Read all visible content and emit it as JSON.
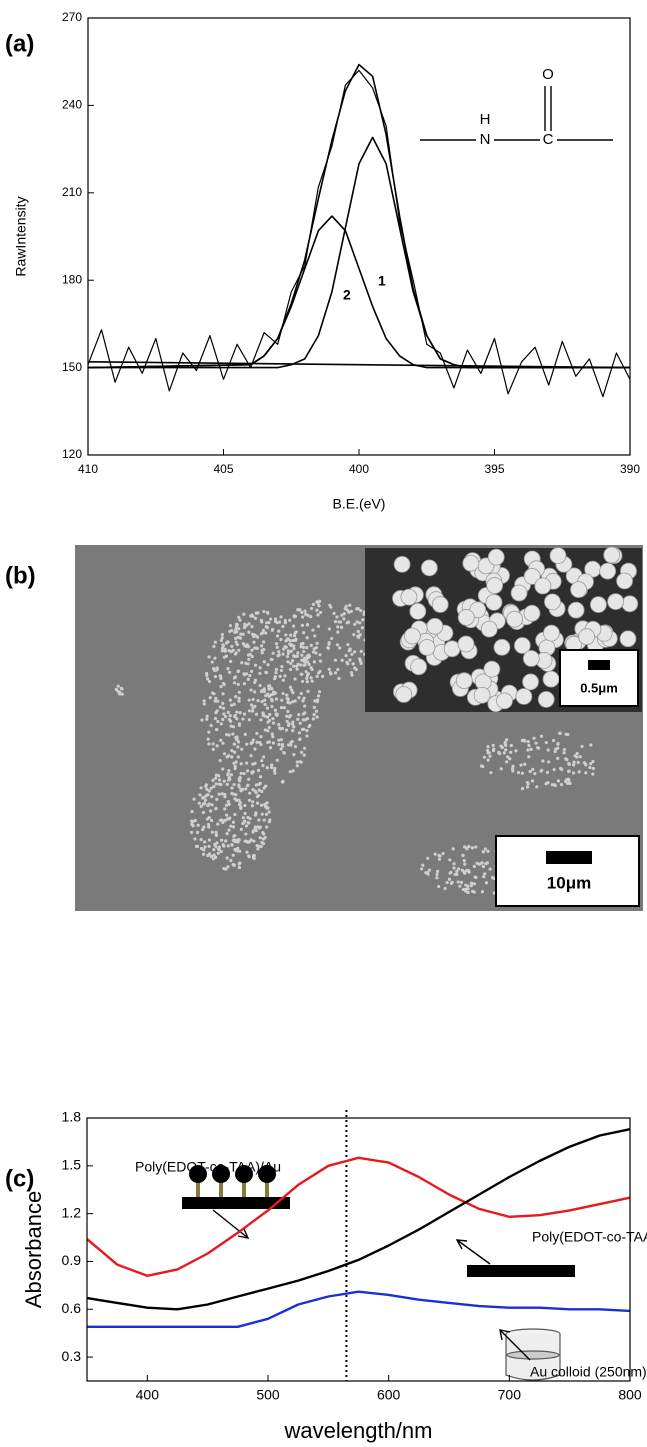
{
  "chart_data": [
    {
      "type": "line",
      "panel_label": "(a)",
      "xlabel": "B.E.(eV)",
      "ylabel": "RawIntensity",
      "xlim": [
        410,
        390
      ],
      "xticks": [
        410,
        405,
        400,
        395,
        390
      ],
      "ylim": [
        120,
        270
      ],
      "yticks": [
        120,
        150,
        180,
        210,
        240,
        270
      ],
      "structure_atoms": [
        "H",
        "N",
        "C",
        "O"
      ],
      "series": [
        {
          "color": "#000000",
          "x": [
            410,
            409.5,
            409,
            408.5,
            408,
            407.5,
            407,
            406.5,
            406,
            405.5,
            405,
            404.5,
            404,
            403.5,
            403,
            402.5,
            402,
            401.5,
            401,
            400.5,
            400,
            399.5,
            399,
            398.5,
            398,
            397.5,
            397,
            396.5,
            396,
            395.5,
            395,
            394.5,
            394,
            393.5,
            393,
            392.5,
            392,
            391.5,
            391,
            390.5,
            390
          ],
          "values": [
            151,
            163,
            145,
            157,
            148,
            160,
            142,
            155,
            149,
            161,
            146,
            158,
            150,
            162,
            158,
            176,
            185,
            212,
            226,
            247,
            252,
            246,
            233,
            200,
            180,
            158,
            155,
            143,
            156,
            148,
            160,
            141,
            152,
            157,
            144,
            159,
            147,
            153,
            140,
            155,
            146
          ]
        },
        {
          "color": "#000000",
          "x": [
            410,
            404,
            403.5,
            403,
            402.5,
            402,
            401.5,
            401,
            400.5,
            400,
            399.5,
            399,
            398.5,
            398,
            397.5,
            397,
            396.5,
            396,
            390
          ],
          "values": [
            150,
            151,
            154,
            160,
            172,
            187,
            208,
            228,
            245,
            254,
            250,
            230,
            202,
            177,
            161,
            153,
            151,
            150,
            150
          ]
        },
        {
          "name": "1",
          "color": "#000000",
          "x": [
            410,
            404,
            403.5,
            403,
            402.5,
            402,
            401.5,
            401,
            400.5,
            400,
            399.5,
            399,
            398.5,
            398,
            397.5,
            397,
            396.5,
            396,
            390
          ],
          "values": [
            150,
            150,
            150,
            150,
            151,
            153,
            161,
            176,
            198,
            220,
            229,
            220,
            198,
            176,
            161,
            153,
            151,
            150,
            150
          ]
        },
        {
          "name": "2",
          "color": "#000000",
          "x": [
            410,
            404,
            403.5,
            403,
            402.5,
            402,
            401.5,
            401,
            400.5,
            400,
            399.5,
            399,
            398.5,
            398,
            397.5,
            397,
            396.5,
            396,
            390
          ],
          "values": [
            150,
            151,
            154,
            160,
            171,
            184,
            197,
            202,
            197,
            184,
            171,
            160,
            154,
            151,
            150,
            150,
            150,
            150,
            150
          ]
        },
        {
          "color": "#000000",
          "x": [
            410,
            390
          ],
          "values": [
            152,
            150
          ]
        }
      ]
    },
    {
      "type": "line",
      "panel_label": "(c)",
      "xlabel": "wavelength/nm",
      "ylabel": "Absorbance",
      "xlim": [
        350,
        800
      ],
      "xticks": [
        400,
        500,
        600,
        700,
        800
      ],
      "ylim": [
        0.15,
        1.8
      ],
      "yticks": [
        0.3,
        0.6,
        0.9,
        1.2,
        1.5,
        1.8
      ],
      "vline": 565,
      "series": [
        {
          "name": "Poly(EDOT-co-TAA)/Au",
          "color": "#e8191c",
          "x": [
            350,
            375,
            400,
            425,
            450,
            475,
            500,
            525,
            550,
            575,
            600,
            625,
            650,
            675,
            700,
            725,
            750,
            775,
            800
          ],
          "values": [
            1.04,
            0.88,
            0.81,
            0.85,
            0.95,
            1.08,
            1.22,
            1.38,
            1.5,
            1.55,
            1.52,
            1.43,
            1.32,
            1.23,
            1.18,
            1.19,
            1.22,
            1.26,
            1.3
          ]
        },
        {
          "name": "Poly(EDOT-co-TAA)",
          "color": "#000000",
          "x": [
            350,
            375,
            400,
            425,
            450,
            475,
            500,
            525,
            550,
            575,
            600,
            625,
            650,
            675,
            700,
            725,
            750,
            775,
            800
          ],
          "values": [
            0.67,
            0.64,
            0.61,
            0.6,
            0.63,
            0.68,
            0.73,
            0.78,
            0.84,
            0.91,
            1.0,
            1.1,
            1.21,
            1.32,
            1.43,
            1.53,
            1.62,
            1.69,
            1.73
          ]
        },
        {
          "name": "Au colloid (250nm)",
          "color": "#1c2fd6",
          "x": [
            350,
            375,
            400,
            425,
            450,
            475,
            500,
            525,
            550,
            575,
            600,
            625,
            650,
            675,
            700,
            725,
            750,
            775,
            800
          ],
          "values": [
            0.49,
            0.49,
            0.49,
            0.49,
            0.49,
            0.49,
            0.54,
            0.63,
            0.68,
            0.71,
            0.69,
            0.66,
            0.64,
            0.62,
            0.61,
            0.61,
            0.6,
            0.6,
            0.59
          ]
        }
      ]
    }
  ],
  "panel_b": {
    "label": "(b)",
    "inset_scale": "0.5μm",
    "main_scale": "10μm"
  }
}
